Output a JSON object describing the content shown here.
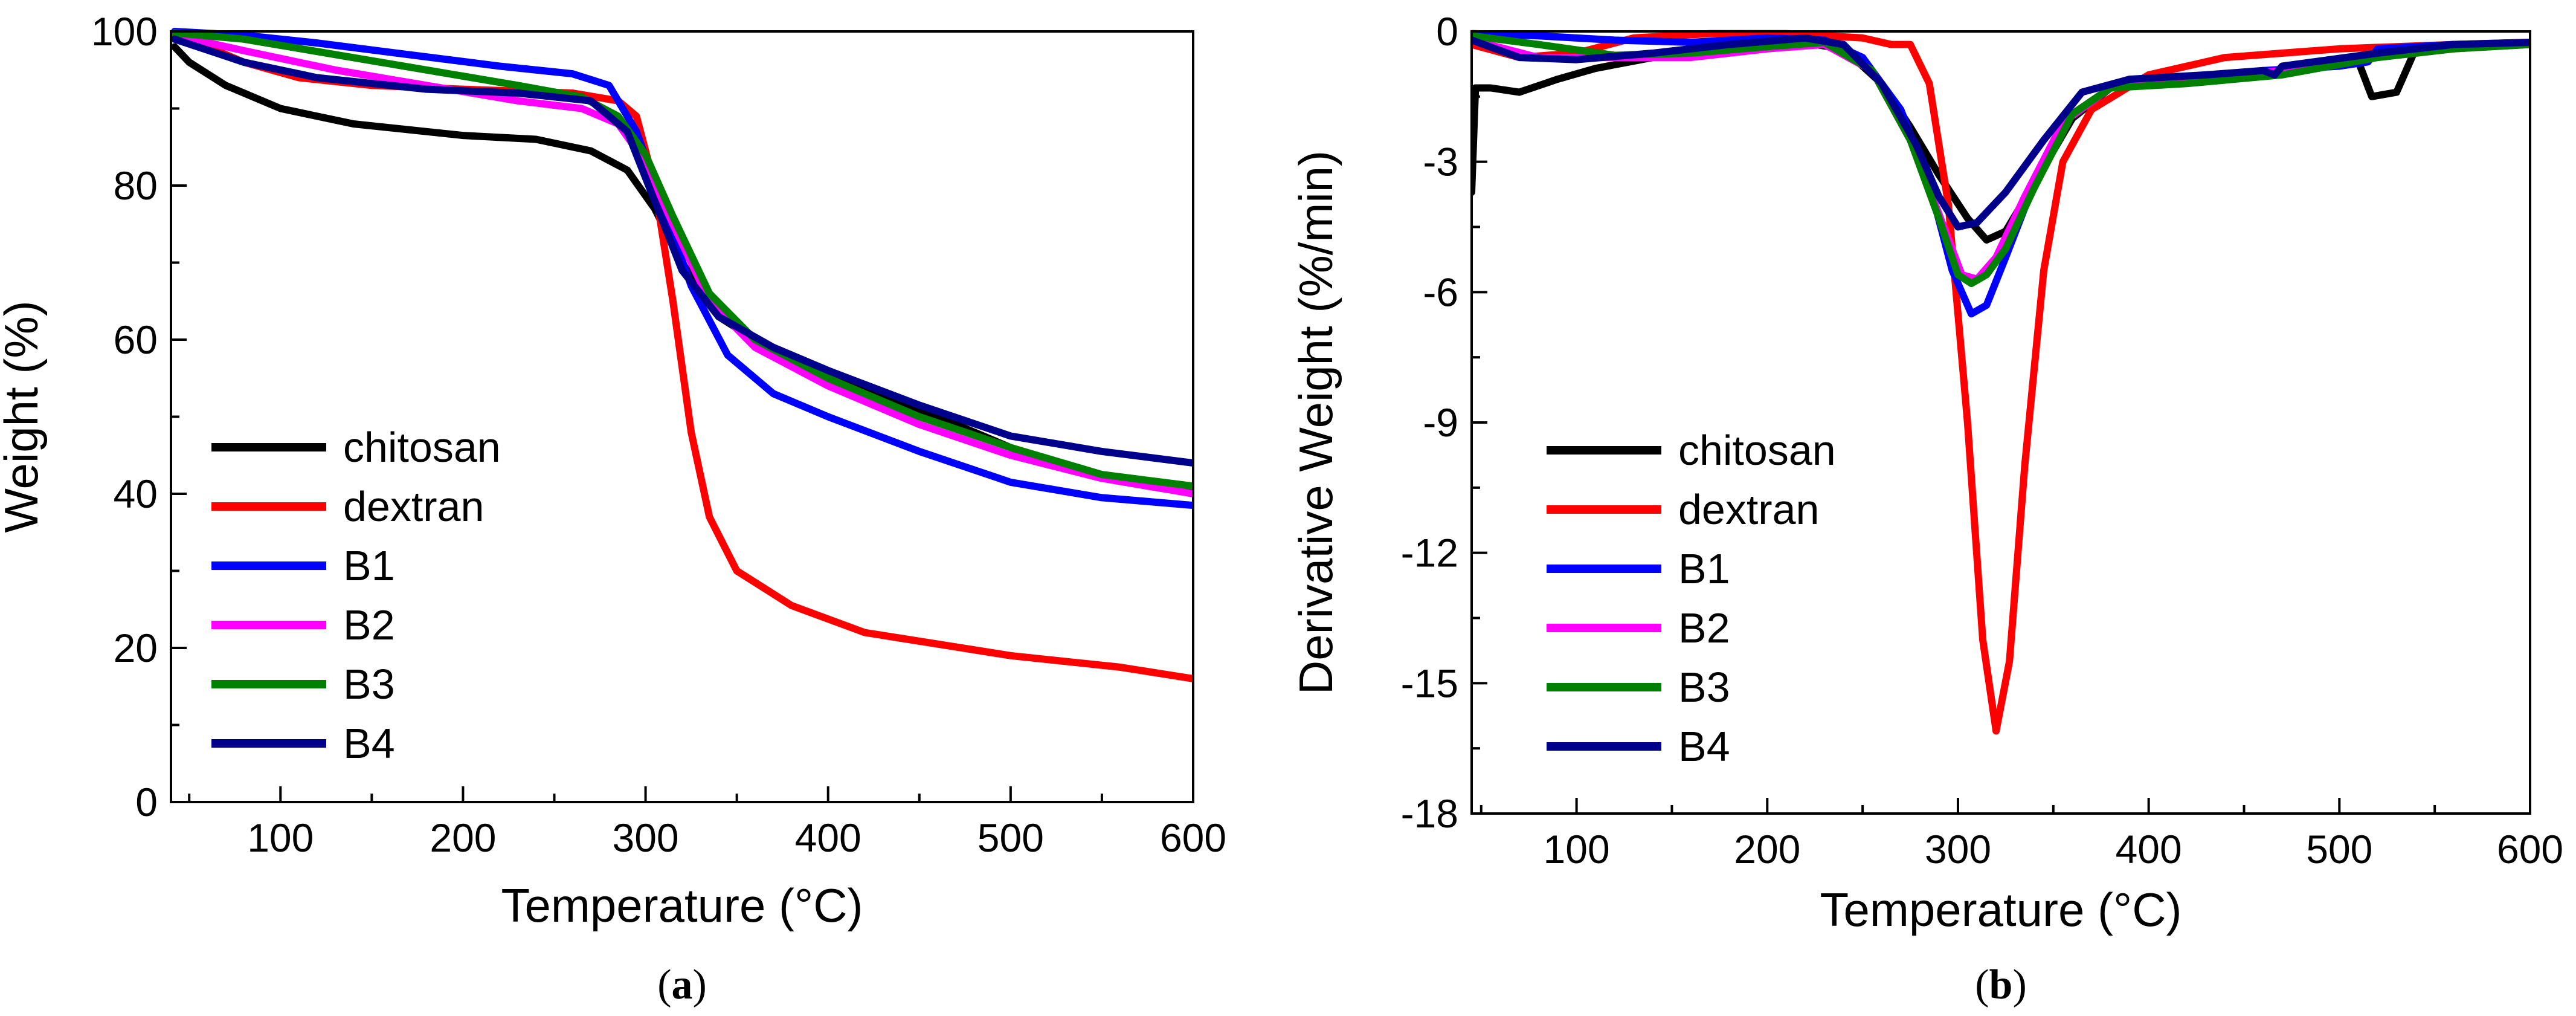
{
  "chart_data": [
    {
      "type": "line",
      "panel": "a",
      "panel_label": "(a)",
      "panel_letter": "a",
      "xlabel": "Temperature (°C)",
      "ylabel": "Weight (%)",
      "xlim": [
        40,
        600
      ],
      "ylim": [
        0,
        100
      ],
      "xticks": [
        100,
        200,
        300,
        400,
        500,
        600
      ],
      "yticks": [
        0,
        20,
        40,
        60,
        80,
        100
      ],
      "legend_position": "bottom-left",
      "series": [
        {
          "name": "chitosan",
          "color": "#000000",
          "points": [
            [
              42,
              98
            ],
            [
              50,
              96
            ],
            [
              70,
              93
            ],
            [
              100,
              90
            ],
            [
              140,
              88
            ],
            [
              200,
              86.5
            ],
            [
              240,
              86
            ],
            [
              270,
              84.5
            ],
            [
              290,
              82
            ],
            [
              305,
              77
            ],
            [
              320,
              70
            ],
            [
              340,
              63
            ],
            [
              360,
              60
            ],
            [
              400,
              56
            ],
            [
              450,
              51
            ],
            [
              500,
              46
            ],
            [
              530,
              43.5
            ],
            [
              560,
              42
            ],
            [
              600,
              40.5
            ]
          ]
        },
        {
          "name": "dextran",
          "color": "#ff0000",
          "points": [
            [
              42,
              99
            ],
            [
              60,
              98
            ],
            [
              80,
              96
            ],
            [
              110,
              94
            ],
            [
              150,
              93
            ],
            [
              200,
              92.5
            ],
            [
              260,
              92
            ],
            [
              285,
              91
            ],
            [
              295,
              89
            ],
            [
              305,
              80
            ],
            [
              315,
              65
            ],
            [
              325,
              48
            ],
            [
              335,
              37
            ],
            [
              350,
              30
            ],
            [
              380,
              25.5
            ],
            [
              420,
              22
            ],
            [
              500,
              19
            ],
            [
              560,
              17.5
            ],
            [
              600,
              16
            ]
          ]
        },
        {
          "name": "B1",
          "color": "#0000ff",
          "points": [
            [
              42,
              100
            ],
            [
              80,
              99.5
            ],
            [
              120,
              98.5
            ],
            [
              170,
              97
            ],
            [
              220,
              95.5
            ],
            [
              260,
              94.5
            ],
            [
              280,
              93
            ],
            [
              295,
              87
            ],
            [
              310,
              77
            ],
            [
              325,
              67
            ],
            [
              345,
              58
            ],
            [
              370,
              53
            ],
            [
              400,
              50
            ],
            [
              450,
              45.5
            ],
            [
              500,
              41.5
            ],
            [
              550,
              39.5
            ],
            [
              600,
              38.5
            ]
          ]
        },
        {
          "name": "B2",
          "color": "#ff00ff",
          "points": [
            [
              42,
              99.5
            ],
            [
              80,
              97.5
            ],
            [
              130,
              95
            ],
            [
              180,
              93
            ],
            [
              230,
              91
            ],
            [
              265,
              90
            ],
            [
              285,
              88
            ],
            [
              300,
              83
            ],
            [
              315,
              75
            ],
            [
              335,
              65
            ],
            [
              360,
              59
            ],
            [
              400,
              54
            ],
            [
              450,
              49
            ],
            [
              500,
              45
            ],
            [
              550,
              42
            ],
            [
              600,
              40
            ]
          ]
        },
        {
          "name": "B3",
          "color": "#008000",
          "points": [
            [
              42,
              99.8
            ],
            [
              80,
              99
            ],
            [
              130,
              97
            ],
            [
              180,
              95
            ],
            [
              230,
              93
            ],
            [
              265,
              91.5
            ],
            [
              285,
              89
            ],
            [
              300,
              84
            ],
            [
              315,
              76
            ],
            [
              335,
              66
            ],
            [
              360,
              60
            ],
            [
              400,
              55
            ],
            [
              450,
              50
            ],
            [
              500,
              46
            ],
            [
              550,
              42.5
            ],
            [
              600,
              41
            ]
          ]
        },
        {
          "name": "B4",
          "color": "#00008b",
          "points": [
            [
              42,
              99
            ],
            [
              80,
              96
            ],
            [
              120,
              94
            ],
            [
              180,
              92.5
            ],
            [
              230,
              92
            ],
            [
              270,
              91
            ],
            [
              290,
              87
            ],
            [
              305,
              78
            ],
            [
              320,
              69
            ],
            [
              340,
              63
            ],
            [
              370,
              59
            ],
            [
              400,
              56
            ],
            [
              450,
              51.5
            ],
            [
              500,
              47.5
            ],
            [
              550,
              45.5
            ],
            [
              600,
              44
            ]
          ]
        }
      ]
    },
    {
      "type": "line",
      "panel": "b",
      "panel_label": "(b)",
      "panel_letter": "b",
      "xlabel": "Temperature (°C)",
      "ylabel": "Derivative Weight (%/min)",
      "xlim": [
        45,
        600
      ],
      "ylim": [
        -18,
        0
      ],
      "xticks": [
        100,
        200,
        300,
        400,
        500,
        600
      ],
      "yticks": [
        0,
        -3,
        -6,
        -9,
        -12,
        -15,
        -18
      ],
      "legend_position": "bottom-left",
      "series": [
        {
          "name": "chitosan",
          "color": "#000000",
          "points": [
            [
              45,
              -3.7
            ],
            [
              47,
              -1.3
            ],
            [
              55,
              -1.3
            ],
            [
              70,
              -1.4
            ],
            [
              90,
              -1.1
            ],
            [
              110,
              -0.85
            ],
            [
              140,
              -0.6
            ],
            [
              180,
              -0.35
            ],
            [
              210,
              -0.2
            ],
            [
              240,
              -0.4
            ],
            [
              260,
              -1.2
            ],
            [
              275,
              -2.2
            ],
            [
              290,
              -3.3
            ],
            [
              305,
              -4.3
            ],
            [
              315,
              -4.8
            ],
            [
              325,
              -4.6
            ],
            [
              340,
              -3.5
            ],
            [
              360,
              -2.0
            ],
            [
              380,
              -1.3
            ],
            [
              420,
              -1.1
            ],
            [
              480,
              -0.9
            ],
            [
              510,
              -0.7
            ],
            [
              517,
              -1.5
            ],
            [
              530,
              -1.4
            ],
            [
              540,
              -0.4
            ],
            [
              560,
              -0.3
            ],
            [
              600,
              -0.3
            ]
          ]
        },
        {
          "name": "dextran",
          "color": "#ff0000",
          "points": [
            [
              45,
              -0.3
            ],
            [
              70,
              -0.6
            ],
            [
              100,
              -0.5
            ],
            [
              130,
              -0.15
            ],
            [
              170,
              -0.05
            ],
            [
              210,
              -0.05
            ],
            [
              250,
              -0.15
            ],
            [
              265,
              -0.3
            ],
            [
              275,
              -0.3
            ],
            [
              285,
              -1.2
            ],
            [
              295,
              -4
            ],
            [
              305,
              -9
            ],
            [
              313,
              -14
            ],
            [
              320,
              -16.1
            ],
            [
              327,
              -14.5
            ],
            [
              335,
              -10
            ],
            [
              345,
              -5.5
            ],
            [
              355,
              -3
            ],
            [
              370,
              -1.8
            ],
            [
              400,
              -1.0
            ],
            [
              440,
              -0.6
            ],
            [
              500,
              -0.4
            ],
            [
              560,
              -0.3
            ],
            [
              600,
              -0.25
            ]
          ]
        },
        {
          "name": "B1",
          "color": "#0000ff",
          "points": [
            [
              45,
              -0.05
            ],
            [
              80,
              -0.1
            ],
            [
              120,
              -0.2
            ],
            [
              160,
              -0.25
            ],
            [
              200,
              -0.15
            ],
            [
              230,
              -0.2
            ],
            [
              250,
              -0.6
            ],
            [
              270,
              -1.8
            ],
            [
              285,
              -3.5
            ],
            [
              297,
              -5.5
            ],
            [
              307,
              -6.5
            ],
            [
              315,
              -6.3
            ],
            [
              325,
              -5.2
            ],
            [
              340,
              -3.5
            ],
            [
              360,
              -1.9
            ],
            [
              380,
              -1.3
            ],
            [
              420,
              -1.1
            ],
            [
              460,
              -0.9
            ],
            [
              500,
              -0.8
            ],
            [
              515,
              -0.7
            ],
            [
              520,
              -0.4
            ],
            [
              560,
              -0.3
            ],
            [
              600,
              -0.3
            ]
          ]
        },
        {
          "name": "B2",
          "color": "#ff00ff",
          "points": [
            [
              45,
              -0.2
            ],
            [
              80,
              -0.6
            ],
            [
              120,
              -0.6
            ],
            [
              160,
              -0.6
            ],
            [
              200,
              -0.4
            ],
            [
              230,
              -0.3
            ],
            [
              255,
              -0.9
            ],
            [
              275,
              -2.5
            ],
            [
              290,
              -4.2
            ],
            [
              302,
              -5.6
            ],
            [
              310,
              -5.7
            ],
            [
              320,
              -5.2
            ],
            [
              335,
              -3.8
            ],
            [
              355,
              -2.1
            ],
            [
              380,
              -1.3
            ],
            [
              420,
              -1.1
            ],
            [
              470,
              -0.9
            ],
            [
              520,
              -0.6
            ],
            [
              560,
              -0.4
            ],
            [
              600,
              -0.3
            ]
          ]
        },
        {
          "name": "B3",
          "color": "#008000",
          "points": [
            [
              45,
              -0.1
            ],
            [
              80,
              -0.3
            ],
            [
              120,
              -0.55
            ],
            [
              160,
              -0.5
            ],
            [
              200,
              -0.35
            ],
            [
              230,
              -0.25
            ],
            [
              255,
              -0.9
            ],
            [
              275,
              -2.5
            ],
            [
              290,
              -4.3
            ],
            [
              300,
              -5.6
            ],
            [
              307,
              -5.8
            ],
            [
              315,
              -5.6
            ],
            [
              325,
              -5.0
            ],
            [
              340,
              -3.6
            ],
            [
              360,
              -1.9
            ],
            [
              380,
              -1.3
            ],
            [
              420,
              -1.2
            ],
            [
              470,
              -1.0
            ],
            [
              520,
              -0.6
            ],
            [
              560,
              -0.4
            ],
            [
              600,
              -0.3
            ]
          ]
        },
        {
          "name": "B4",
          "color": "#00008b",
          "points": [
            [
              45,
              -0.2
            ],
            [
              70,
              -0.6
            ],
            [
              100,
              -0.65
            ],
            [
              140,
              -0.5
            ],
            [
              180,
              -0.3
            ],
            [
              220,
              -0.15
            ],
            [
              240,
              -0.3
            ],
            [
              260,
              -1.2
            ],
            [
              278,
              -2.6
            ],
            [
              290,
              -3.8
            ],
            [
              300,
              -4.5
            ],
            [
              310,
              -4.4
            ],
            [
              325,
              -3.7
            ],
            [
              345,
              -2.5
            ],
            [
              365,
              -1.4
            ],
            [
              390,
              -1.1
            ],
            [
              430,
              -1.0
            ],
            [
              460,
              -0.9
            ],
            [
              466,
              -1.0
            ],
            [
              470,
              -0.8
            ],
            [
              520,
              -0.5
            ],
            [
              560,
              -0.3
            ],
            [
              600,
              -0.25
            ]
          ]
        }
      ]
    }
  ]
}
